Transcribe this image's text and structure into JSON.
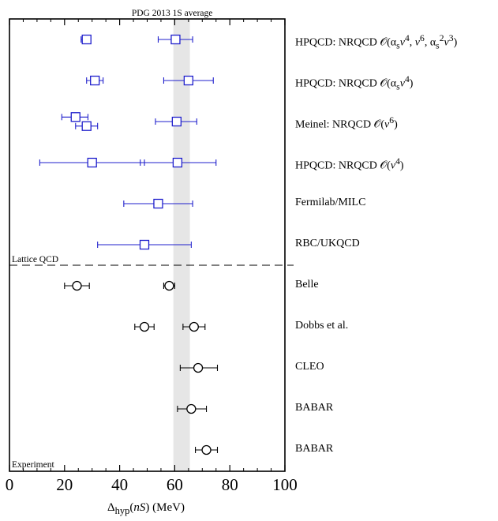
{
  "chart_data": {
    "type": "scatter",
    "title": "",
    "xlabel_html": "Δ<sub>hyp</sub>(<i>nS</i>) (MeV)",
    "xlabel": "Δhyp(nS) (MeV)",
    "xlim": [
      0,
      100
    ],
    "x_ticks": [
      0,
      20,
      40,
      60,
      80,
      100
    ],
    "band": {
      "label": "PDG 2013 1S average",
      "x_min": 59.5,
      "x_max": 65.5,
      "color": "#e6e6e6"
    },
    "sections": {
      "lattice_label": "Lattice QCD",
      "experiment_label": "Experiment"
    },
    "rows": [
      {
        "label_html": "HPQCD: NRQCD 𝒪(α<sub>s</sub><i>v</i><sup>4</sup>, <i>v</i><sup>6</sup>, α<sub>s</sub><sup>2</sup><i>v</i><sup>3</sup>)",
        "label": "HPQCD: NRQCD 𝒪(αsv4, v6, αs2v3)",
        "group": "lattice",
        "points": [
          {
            "x": 28.0,
            "lo": 26.0,
            "hi": 29.5
          },
          {
            "x": 60.3,
            "lo": 54.0,
            "hi": 66.5
          }
        ]
      },
      {
        "label_html": "HPQCD: NRQCD 𝒪(α<sub>s</sub><i>v</i><sup>4</sup>)",
        "label": "HPQCD: NRQCD 𝒪(αsv4)",
        "group": "lattice",
        "points": [
          {
            "x": 31.0,
            "lo": 28.0,
            "hi": 34.0
          },
          {
            "x": 65.0,
            "lo": 56.0,
            "hi": 74.0
          }
        ]
      },
      {
        "label_html": "Meinel: NRQCD 𝒪(<i>v</i><sup>6</sup>)",
        "label": "Meinel: NRQCD 𝒪(v6)",
        "group": "lattice",
        "points": [
          {
            "x": 24.0,
            "lo": 19.0,
            "hi": 28.5,
            "dy": -0.22
          },
          {
            "x": 28.0,
            "lo": 24.0,
            "hi": 32.0,
            "dy": 0.22
          },
          {
            "x": 60.7,
            "lo": 53.0,
            "hi": 68.0
          }
        ]
      },
      {
        "label_html": "HPQCD: NRQCD 𝒪(<i>v</i><sup>4</sup>)",
        "label": "HPQCD: NRQCD 𝒪(v4)",
        "group": "lattice",
        "points": [
          {
            "x": 30.0,
            "lo": 11.0,
            "hi": 49.0
          },
          {
            "x": 61.0,
            "lo": 47.5,
            "hi": 75.0
          }
        ]
      },
      {
        "label_html": "Fermilab/MILC",
        "label": "Fermilab/MILC",
        "group": "lattice",
        "points": [
          {
            "x": 54.0,
            "lo": 41.5,
            "hi": 66.5
          }
        ]
      },
      {
        "label_html": "RBC/UKQCD",
        "label": "RBC/UKQCD",
        "group": "lattice",
        "points": [
          {
            "x": 49.0,
            "lo": 32.0,
            "hi": 66.0
          }
        ]
      },
      {
        "label_html": "Belle",
        "label": "Belle",
        "group": "experiment",
        "points": [
          {
            "x": 24.5,
            "lo": 20.0,
            "hi": 29.0
          },
          {
            "x": 58.0,
            "lo": 56.0,
            "hi": 60.0
          }
        ]
      },
      {
        "label_html": "Dobbs et al.",
        "label": "Dobbs et al.",
        "group": "experiment",
        "points": [
          {
            "x": 49.0,
            "lo": 45.5,
            "hi": 52.5
          },
          {
            "x": 67.0,
            "lo": 63.0,
            "hi": 71.0
          }
        ]
      },
      {
        "label_html": "CLEO",
        "label": "CLEO",
        "group": "experiment",
        "points": [
          {
            "x": 68.5,
            "lo": 62.0,
            "hi": 75.5
          }
        ]
      },
      {
        "label_html": "BABAR",
        "label": "BABAR",
        "group": "experiment",
        "points": [
          {
            "x": 66.0,
            "lo": 61.0,
            "hi": 71.5
          }
        ]
      },
      {
        "label_html": "BABAR",
        "label": "BABAR",
        "group": "experiment",
        "points": [
          {
            "x": 71.5,
            "lo": 67.5,
            "hi": 75.5
          }
        ]
      }
    ],
    "colors": {
      "lattice": "#1f1fcc",
      "experiment": "#000000",
      "band": "#e6e6e6",
      "frame": "#000000"
    }
  }
}
